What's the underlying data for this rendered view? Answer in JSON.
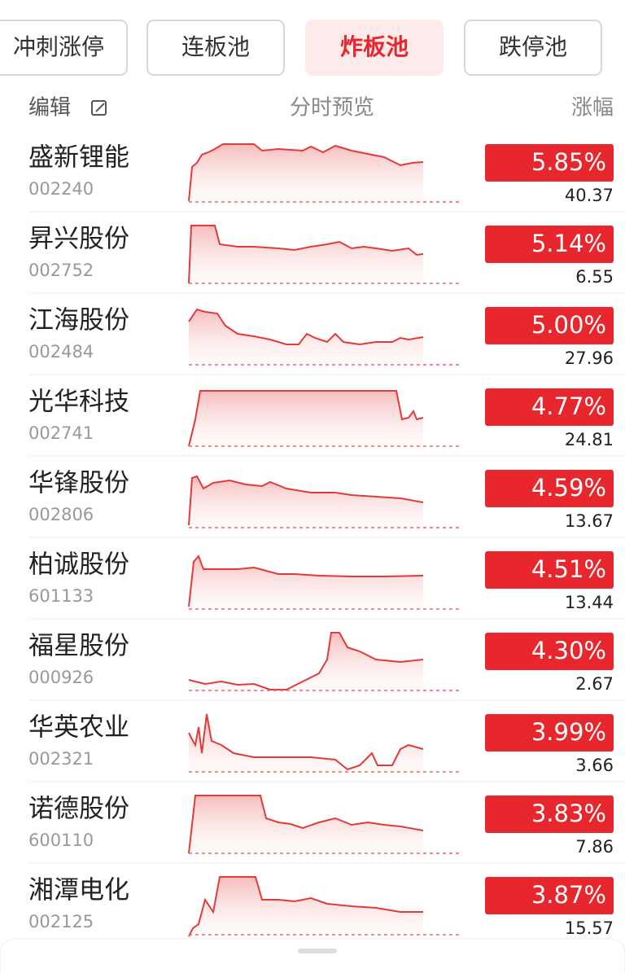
{
  "tabs": [
    "冲刺涨停",
    "连板池",
    "炸板池",
    "跌停池"
  ],
  "active_tab": 2,
  "header": {
    "edit": "编辑",
    "preview": "分时预览",
    "change": "涨幅"
  },
  "rows": [
    {
      "name": "盛新锂能",
      "code": "002240",
      "change": "5.85%",
      "price": "40.37"
    },
    {
      "name": "昇兴股份",
      "code": "002752",
      "change": "5.14%",
      "price": "6.55"
    },
    {
      "name": "江海股份",
      "code": "002484",
      "change": "5.00%",
      "price": "27.96"
    },
    {
      "name": "光华科技",
      "code": "002741",
      "change": "4.77%",
      "price": "24.81"
    },
    {
      "name": "华锋股份",
      "code": "002806",
      "change": "4.59%",
      "price": "13.67"
    },
    {
      "name": "柏诚股份",
      "code": "601133",
      "change": "4.51%",
      "price": "13.44"
    },
    {
      "name": "福星股份",
      "code": "000926",
      "change": "4.30%",
      "price": "2.67"
    },
    {
      "name": "华英农业",
      "code": "002321",
      "change": "3.99%",
      "price": "3.66"
    },
    {
      "name": "诺德股份",
      "code": "600110",
      "change": "3.83%",
      "price": "7.86"
    },
    {
      "name": "湘潭电化",
      "code": "002125",
      "change": "3.87%",
      "price": "15.57"
    }
  ]
}
